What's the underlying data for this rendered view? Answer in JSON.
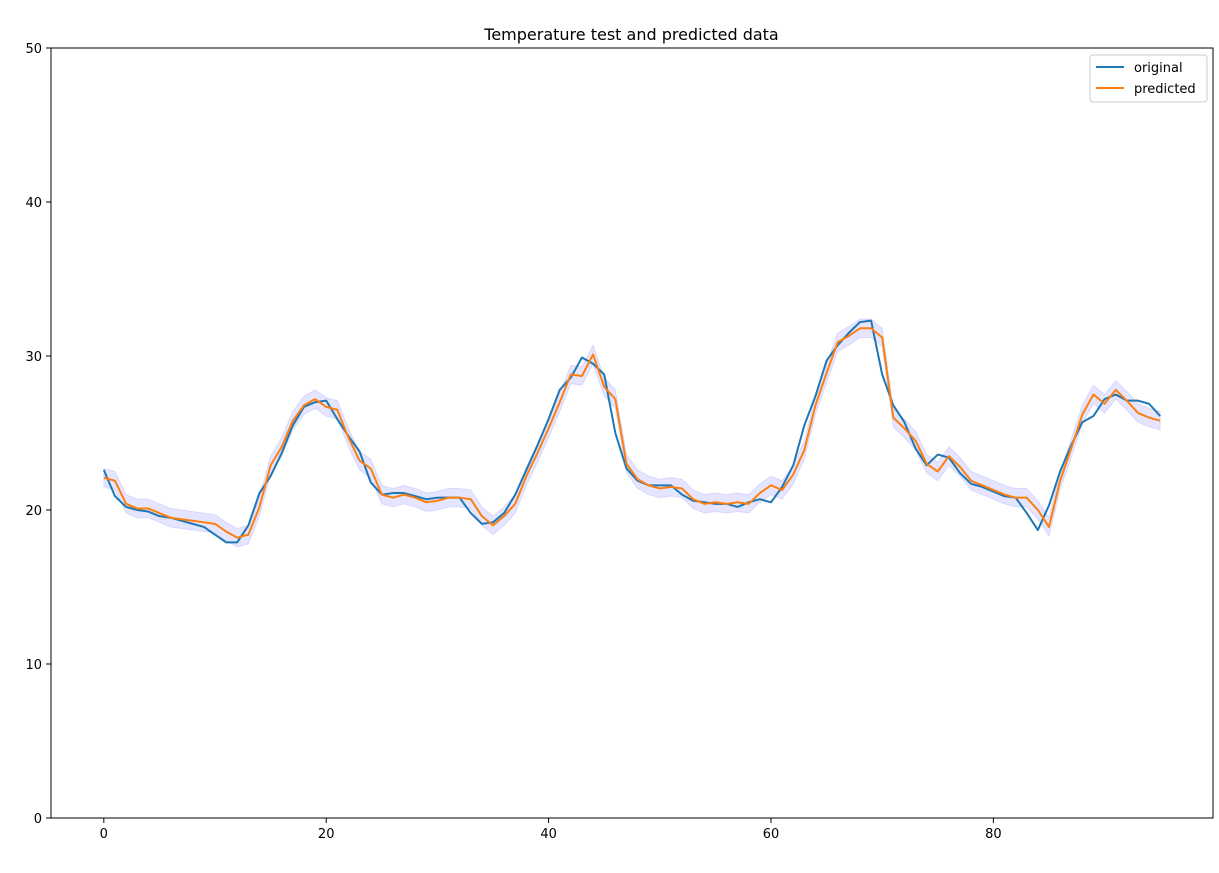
{
  "chart_data": {
    "type": "line",
    "title": "Temperature test and predicted data",
    "xlabel": "",
    "ylabel": "",
    "xlim": [
      -4.75,
      99.75
    ],
    "ylim": [
      0,
      50
    ],
    "xticks": [
      0,
      20,
      40,
      60,
      80
    ],
    "yticks": [
      0,
      10,
      20,
      30,
      40,
      50
    ],
    "grid": false,
    "legend_position": "top-right",
    "band": {
      "for_series": "predicted",
      "half_width": 0.6,
      "color": "#0000ff",
      "opacity": 0.1
    },
    "series": [
      {
        "name": "original",
        "color": "#1f77b4",
        "values": [
          22.6,
          20.9,
          20.2,
          20.0,
          19.9,
          19.6,
          19.5,
          19.3,
          19.1,
          18.9,
          18.4,
          17.9,
          17.9,
          19.0,
          21.1,
          22.2,
          23.7,
          25.5,
          26.7,
          27.0,
          27.1,
          25.9,
          24.8,
          23.8,
          21.8,
          21.0,
          21.1,
          21.1,
          20.9,
          20.7,
          20.8,
          20.8,
          20.8,
          19.8,
          19.1,
          19.2,
          19.8,
          21.0,
          22.6,
          24.2,
          25.9,
          27.8,
          28.6,
          29.9,
          29.5,
          28.8,
          25.0,
          22.7,
          21.9,
          21.6,
          21.6,
          21.6,
          21.0,
          20.6,
          20.5,
          20.4,
          20.4,
          20.2,
          20.5,
          20.7,
          20.5,
          21.5,
          22.9,
          25.5,
          27.4,
          29.7,
          30.7,
          31.5,
          32.2,
          32.3,
          28.8,
          26.8,
          25.7,
          24.0,
          22.9,
          23.6,
          23.4,
          22.4,
          21.7,
          21.5,
          21.2,
          20.9,
          20.8,
          19.8,
          18.7,
          20.3,
          22.5,
          24.2,
          25.7,
          26.1,
          27.2,
          27.5,
          27.1,
          27.1,
          26.9,
          26.1
        ]
      },
      {
        "name": "predicted",
        "color": "#ff7f0e",
        "values": [
          22.1,
          21.9,
          20.4,
          20.1,
          20.1,
          19.8,
          19.5,
          19.4,
          19.3,
          19.2,
          19.1,
          18.6,
          18.2,
          18.4,
          20.2,
          22.9,
          24.1,
          25.8,
          26.8,
          27.2,
          26.7,
          26.5,
          24.7,
          23.2,
          22.7,
          21.0,
          20.8,
          21.0,
          20.8,
          20.5,
          20.6,
          20.8,
          20.8,
          20.7,
          19.6,
          19.0,
          19.6,
          20.4,
          22.2,
          23.7,
          25.3,
          27.0,
          28.8,
          28.7,
          30.1,
          28.0,
          27.2,
          23.0,
          22.0,
          21.6,
          21.4,
          21.5,
          21.4,
          20.7,
          20.4,
          20.5,
          20.4,
          20.5,
          20.4,
          21.1,
          21.6,
          21.3,
          22.3,
          23.9,
          26.8,
          28.9,
          30.9,
          31.3,
          31.8,
          31.8,
          31.2,
          26.0,
          25.3,
          24.5,
          23.0,
          22.5,
          23.5,
          22.8,
          21.9,
          21.6,
          21.3,
          21.0,
          20.8,
          20.8,
          20.0,
          18.9,
          21.9,
          24.0,
          26.2,
          27.5,
          26.9,
          27.8,
          27.1,
          26.3,
          26.0,
          25.8
        ]
      }
    ]
  }
}
